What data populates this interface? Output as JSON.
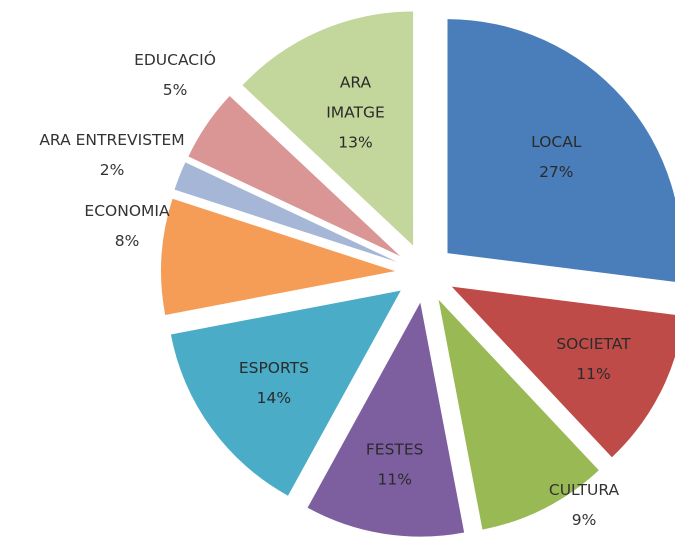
{
  "chart_data": {
    "type": "pie",
    "exploded": true,
    "start_angle_deg": 0,
    "direction": "clockwise",
    "slices": [
      {
        "name": "LOCAL",
        "value": 27,
        "label": "27%",
        "color": "#4a7ebb"
      },
      {
        "name": "SOCIETAT",
        "value": 11,
        "label": "11%",
        "color": "#be4b48"
      },
      {
        "name": "CULTURA",
        "value": 9,
        "label": "9%",
        "color": "#98b954"
      },
      {
        "name": "FESTES",
        "value": 11,
        "label": "11%",
        "color": "#7d5fa0"
      },
      {
        "name": "ESPORTS",
        "value": 14,
        "label": "14%",
        "color": "#4aacc6"
      },
      {
        "name": "ECONOMIA",
        "value": 8,
        "label": "8%",
        "color": "#f59d56"
      },
      {
        "name": "ARA ENTREVISTEM",
        "value": 2,
        "label": "2%",
        "color": "#a5b6d7"
      },
      {
        "name": "EDUCACIÓ",
        "value": 5,
        "label": "5%",
        "color": "#d99695"
      },
      {
        "name": "ARA IMATGE",
        "value": 13,
        "label": "13%",
        "color": "#c3d69b"
      }
    ]
  }
}
